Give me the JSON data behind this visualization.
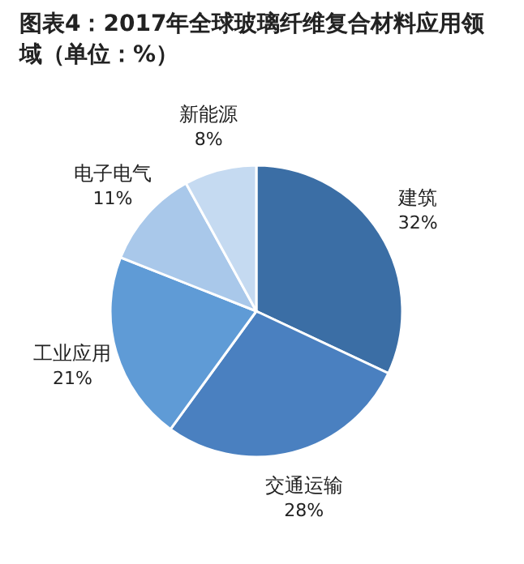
{
  "chart_data": {
    "type": "pie",
    "title": "图表4：2017年全球玻璃纤维复合材料应用领域（单位：%）",
    "categories": [
      "建筑",
      "交通运输",
      "工业应用",
      "电子电气",
      "新能源"
    ],
    "values": [
      32,
      28,
      21,
      11,
      8
    ],
    "colors": [
      "#3b6ea5",
      "#4a80c0",
      "#5f9bd6",
      "#a9c8ea",
      "#c5daf1"
    ],
    "value_labels": [
      "32%",
      "28%",
      "21%",
      "11%",
      "8%"
    ]
  }
}
